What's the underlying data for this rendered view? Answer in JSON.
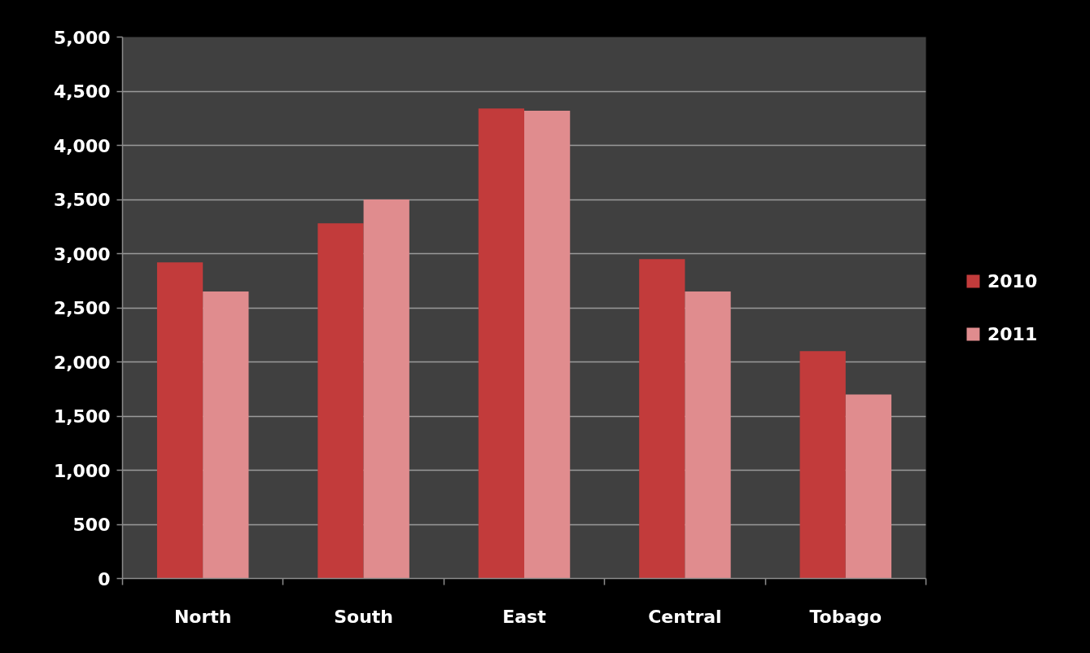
{
  "chart_data": {
    "type": "bar",
    "categories": [
      "North",
      "South",
      "East",
      "Central",
      "Tobago"
    ],
    "series": [
      {
        "name": "2010",
        "color": "#c23b3b",
        "values": [
          2920,
          3280,
          4340,
          2950,
          2100
        ]
      },
      {
        "name": "2011",
        "color": "#e08c8e",
        "values": [
          2650,
          3500,
          4320,
          2650,
          1700
        ]
      }
    ],
    "ylim": [
      0,
      5000
    ],
    "yticks": [
      0,
      500,
      {
        "value": 1000,
        "label": "1,000"
      },
      {
        "value": 1500,
        "label": "1,500"
      },
      {
        "value": 2000,
        "label": "2,000"
      },
      {
        "value": 2500,
        "label": "2,500"
      },
      {
        "value": 3000,
        "label": "3,000"
      },
      {
        "value": 3500,
        "label": "3,500"
      },
      {
        "value": 4000,
        "label": "4,000"
      },
      {
        "value": 4500,
        "label": "4,500"
      },
      {
        "value": 5000,
        "label": "5,000"
      }
    ],
    "grid": "y",
    "legend": "right"
  }
}
